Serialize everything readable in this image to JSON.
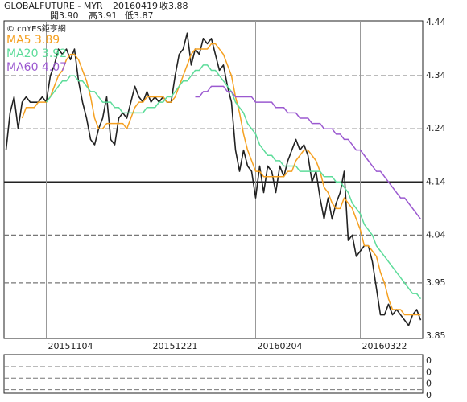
{
  "chart_data": {
    "type": "line",
    "title": "GLOBALFUTURE - MYR",
    "date": "20160419",
    "quote": [
      "收3.88",
      "開3.90",
      "高3.91",
      "低3.87"
    ],
    "source": "© cnYES鉅亨網",
    "categories": [
      null,
      null,
      null,
      null,
      null,
      null,
      null,
      null,
      null,
      null,
      "20151104",
      null,
      null,
      null,
      null,
      null,
      null,
      null,
      null,
      null,
      null,
      null,
      null,
      null,
      null,
      null,
      null,
      null,
      null,
      null,
      null,
      null,
      null,
      null,
      null,
      null,
      "20151221",
      null,
      null,
      null,
      null,
      null,
      null,
      null,
      null,
      null,
      null,
      null,
      null,
      null,
      null,
      null,
      null,
      null,
      null,
      null,
      null,
      null,
      null,
      null,
      null,
      null,
      "20160204",
      null,
      null,
      null,
      null,
      null,
      null,
      null,
      null,
      null,
      null,
      null,
      null,
      null,
      null,
      null,
      null,
      null,
      null,
      null,
      null,
      null,
      null,
      null,
      null,
      null,
      "20160322",
      null,
      null,
      null,
      null,
      null,
      null,
      null,
      null,
      null,
      null,
      null,
      null,
      null,
      null,
      null
    ],
    "ylim": [
      3.85,
      4.44
    ],
    "yticks": [
      3.85,
      3.95,
      4.04,
      4.14,
      4.24,
      4.34,
      4.44
    ],
    "grid": true,
    "series": [
      {
        "name": "Close",
        "color": "#222222",
        "values": [
          4.2,
          4.27,
          4.3,
          4.24,
          4.29,
          4.3,
          4.29,
          4.29,
          4.29,
          4.3,
          4.29,
          4.34,
          4.36,
          4.39,
          4.38,
          4.39,
          4.37,
          4.39,
          4.33,
          4.29,
          4.26,
          4.22,
          4.21,
          4.24,
          4.26,
          4.3,
          4.22,
          4.21,
          4.26,
          4.27,
          4.26,
          4.29,
          4.32,
          4.3,
          4.29,
          4.31,
          4.29,
          4.3,
          4.29,
          4.3,
          4.29,
          4.29,
          4.34,
          4.38,
          4.39,
          4.42,
          4.36,
          4.39,
          4.38,
          4.41,
          4.4,
          4.41,
          4.38,
          4.35,
          4.36,
          4.32,
          4.29,
          4.2,
          4.16,
          4.2,
          4.17,
          4.16,
          4.11,
          4.17,
          4.12,
          4.17,
          4.16,
          4.12,
          4.17,
          4.15,
          4.18,
          4.2,
          4.22,
          4.2,
          4.21,
          4.19,
          4.14,
          4.16,
          4.11,
          4.07,
          4.11,
          4.07,
          4.1,
          4.12,
          4.16,
          4.03,
          4.04,
          4.0,
          4.01,
          4.02,
          4.02,
          3.99,
          3.94,
          3.89,
          3.89,
          3.91,
          3.89,
          3.9,
          3.89,
          3.88,
          3.87,
          3.89,
          3.9,
          3.88
        ]
      },
      {
        "name": "MA5 3.89",
        "color": "#f5a020",
        "values": [
          null,
          null,
          null,
          null,
          4.26,
          4.28,
          4.28,
          4.28,
          4.29,
          4.29,
          4.29,
          4.3,
          4.32,
          4.34,
          4.35,
          4.37,
          4.38,
          4.38,
          4.37,
          4.35,
          4.33,
          4.3,
          4.26,
          4.24,
          4.24,
          4.25,
          4.25,
          4.25,
          4.25,
          4.25,
          4.24,
          4.26,
          4.28,
          4.29,
          4.29,
          4.3,
          4.3,
          4.3,
          4.3,
          4.3,
          4.29,
          4.29,
          4.3,
          4.32,
          4.34,
          4.36,
          4.38,
          4.39,
          4.39,
          4.39,
          4.39,
          4.4,
          4.4,
          4.39,
          4.38,
          4.36,
          4.34,
          4.3,
          4.27,
          4.23,
          4.2,
          4.18,
          4.16,
          4.16,
          4.15,
          4.15,
          4.15,
          4.15,
          4.15,
          4.15,
          4.16,
          4.16,
          4.18,
          4.19,
          4.2,
          4.2,
          4.19,
          4.18,
          4.16,
          4.13,
          4.12,
          4.1,
          4.09,
          4.09,
          4.11,
          4.1,
          4.09,
          4.07,
          4.05,
          4.02,
          4.02,
          4.01,
          4.0,
          3.97,
          3.95,
          3.92,
          3.9,
          3.9,
          3.9,
          3.89,
          3.89,
          3.89,
          3.89,
          3.89
        ]
      },
      {
        "name": "MA20 3.92",
        "color": "#5ddc9a",
        "values": [
          null,
          null,
          null,
          null,
          null,
          null,
          null,
          null,
          null,
          null,
          4.29,
          4.3,
          4.31,
          4.32,
          4.33,
          4.33,
          4.34,
          4.34,
          4.33,
          4.33,
          4.32,
          4.31,
          4.31,
          4.3,
          4.29,
          4.29,
          4.29,
          4.28,
          4.28,
          4.27,
          4.27,
          4.27,
          4.27,
          4.27,
          4.27,
          4.28,
          4.28,
          4.28,
          4.29,
          4.29,
          4.3,
          4.3,
          4.31,
          4.32,
          4.33,
          4.33,
          4.34,
          4.35,
          4.35,
          4.36,
          4.36,
          4.35,
          4.35,
          4.34,
          4.33,
          4.32,
          4.31,
          4.29,
          4.28,
          4.27,
          4.25,
          4.24,
          4.23,
          4.21,
          4.2,
          4.19,
          4.19,
          4.18,
          4.18,
          4.17,
          4.17,
          4.17,
          4.17,
          4.16,
          4.16,
          4.16,
          4.16,
          4.16,
          4.16,
          4.15,
          4.15,
          4.15,
          4.14,
          4.14,
          4.13,
          4.12,
          4.1,
          4.09,
          4.08,
          4.06,
          4.05,
          4.04,
          4.02,
          4.01,
          4.0,
          3.99,
          3.98,
          3.97,
          3.96,
          3.95,
          3.94,
          3.93,
          3.93,
          3.92
        ]
      },
      {
        "name": "MA60 4.07",
        "color": "#9b59d0",
        "values": [
          null,
          null,
          null,
          null,
          null,
          null,
          null,
          null,
          null,
          null,
          null,
          null,
          null,
          null,
          null,
          null,
          null,
          null,
          null,
          null,
          null,
          null,
          null,
          null,
          null,
          null,
          null,
          null,
          null,
          null,
          null,
          null,
          null,
          null,
          null,
          null,
          null,
          null,
          null,
          null,
          null,
          null,
          null,
          null,
          null,
          null,
          null,
          4.3,
          4.3,
          4.31,
          4.31,
          4.32,
          4.32,
          4.32,
          4.32,
          4.31,
          4.31,
          4.3,
          4.3,
          4.3,
          4.3,
          4.3,
          4.29,
          4.29,
          4.29,
          4.29,
          4.29,
          4.28,
          4.28,
          4.28,
          4.27,
          4.27,
          4.27,
          4.26,
          4.26,
          4.26,
          4.25,
          4.25,
          4.25,
          4.24,
          4.24,
          4.24,
          4.23,
          4.23,
          4.22,
          4.22,
          4.21,
          4.2,
          4.2,
          4.19,
          4.18,
          4.17,
          4.16,
          4.16,
          4.15,
          4.14,
          4.13,
          4.12,
          4.11,
          4.11,
          4.1,
          4.09,
          4.08,
          4.07
        ]
      }
    ],
    "lower_panel": {
      "yticks": [
        "0",
        "0",
        "0",
        "0"
      ]
    }
  }
}
